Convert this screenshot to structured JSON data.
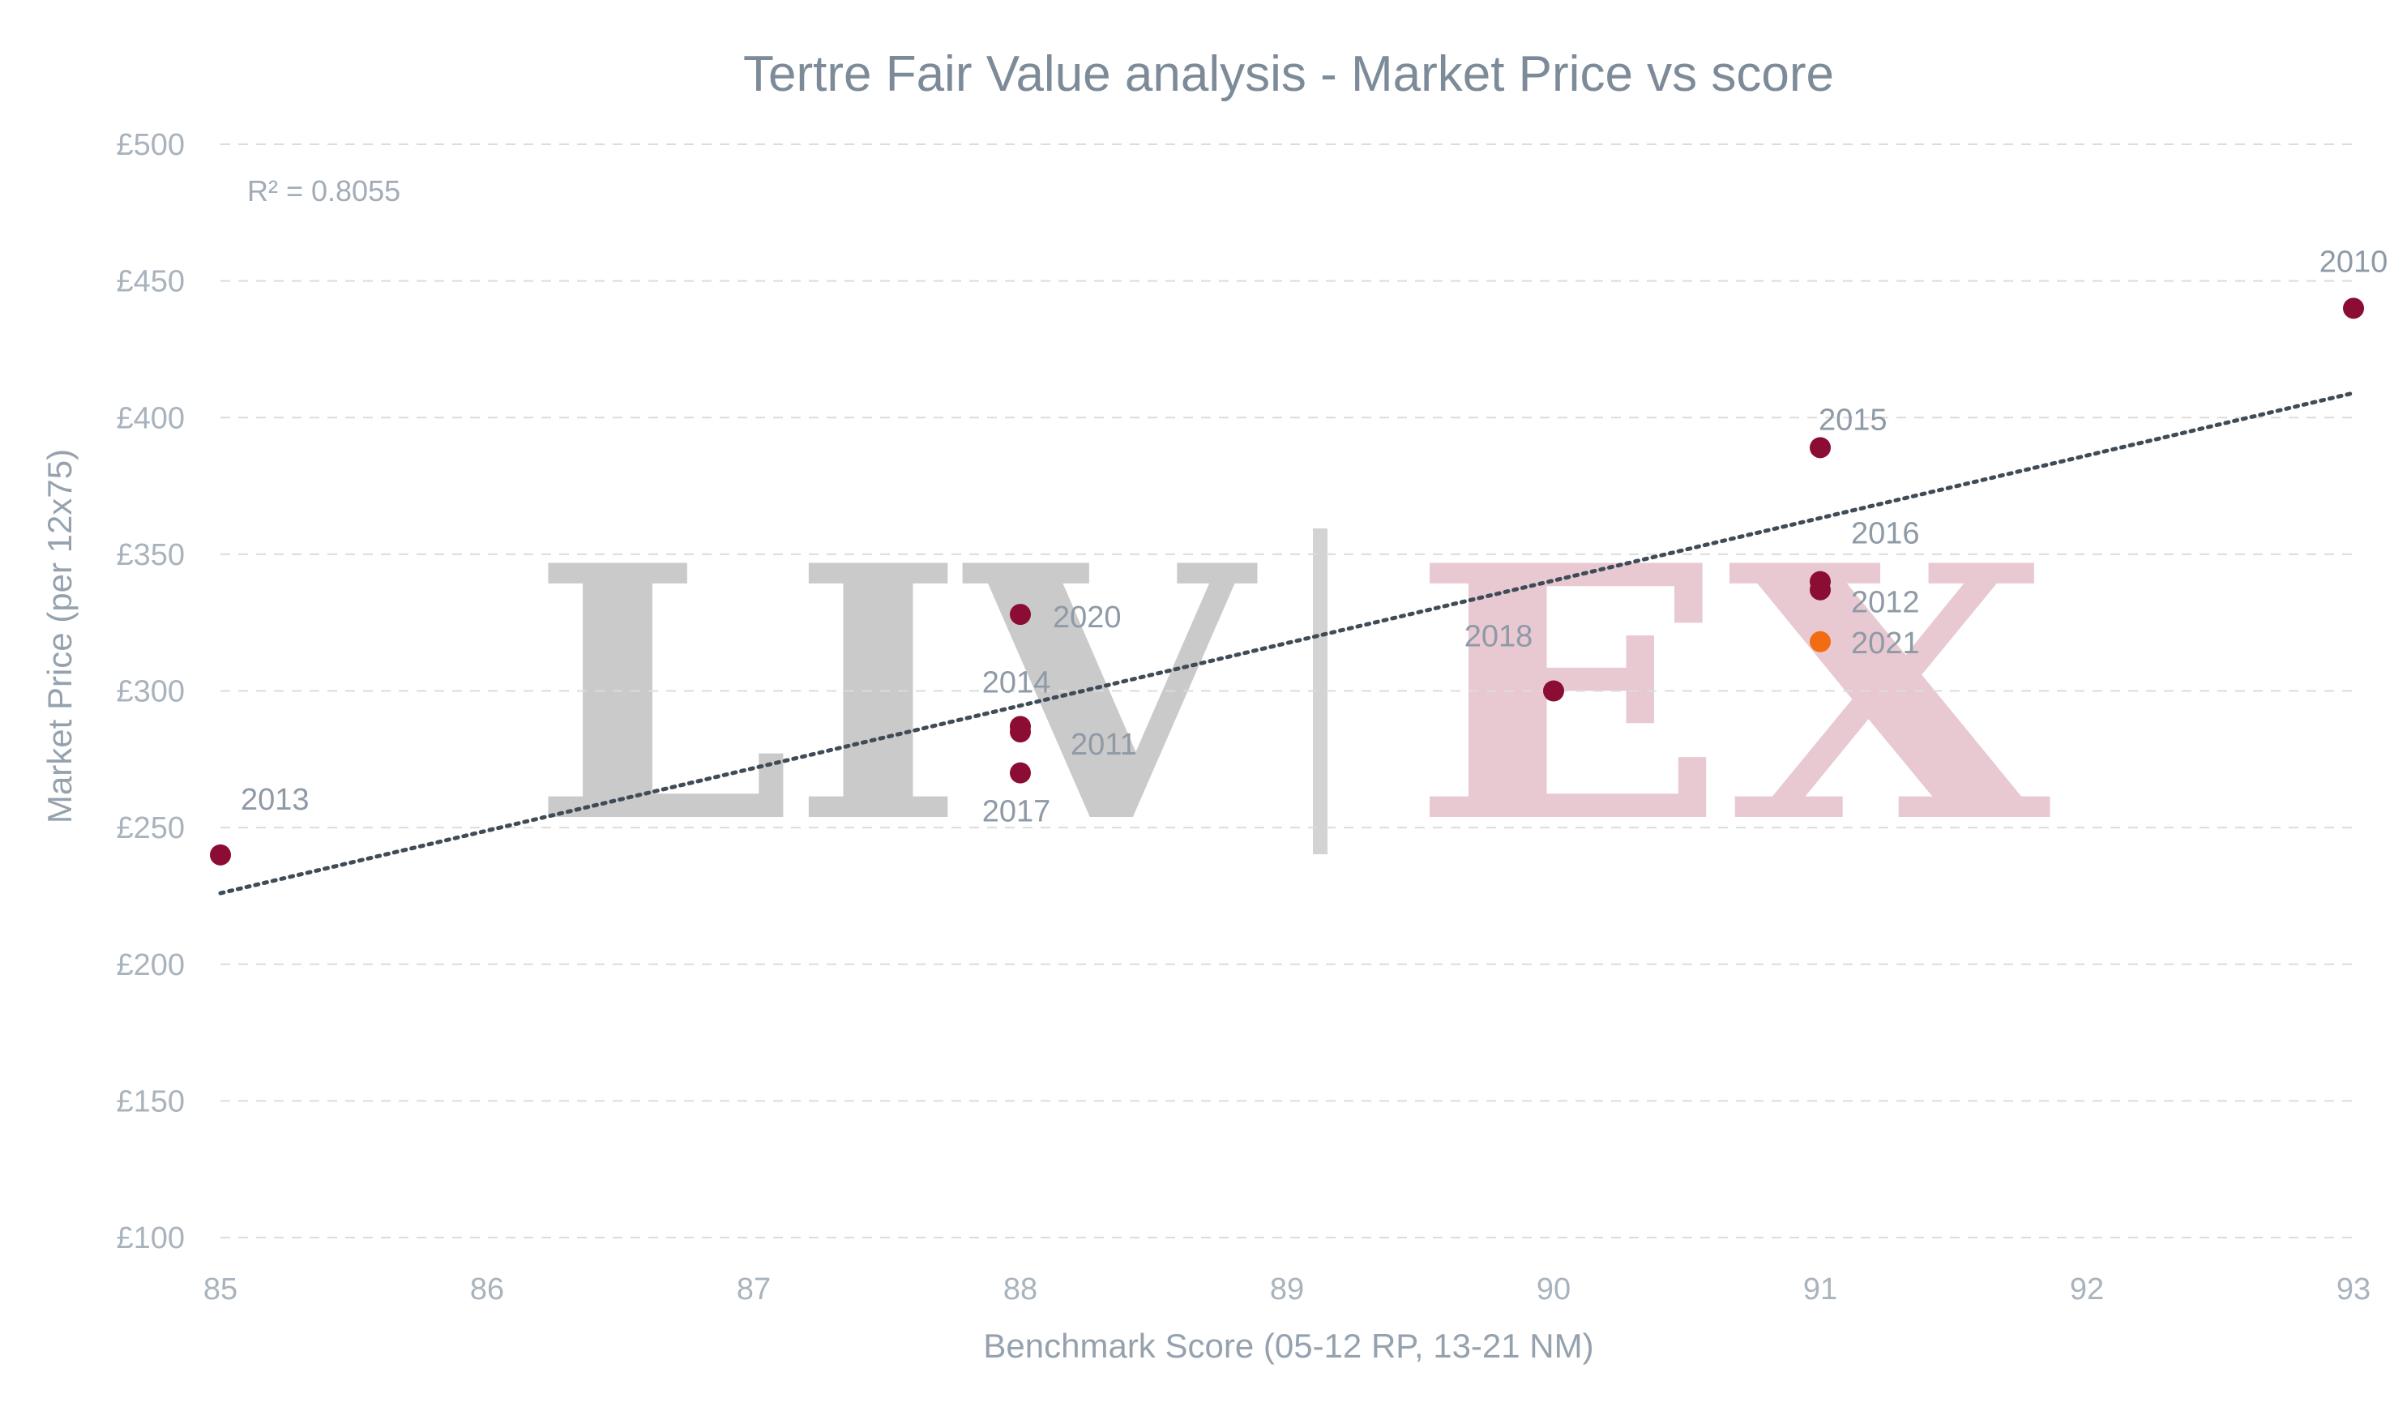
{
  "chart_data": {
    "type": "scatter",
    "title": "Tertre Fair Value analysis - Market Price vs score",
    "xlabel": "Benchmark Score (05-12 RP, 13-21 NM)",
    "ylabel": "Market Price (per 12x75)",
    "xlim": [
      85,
      93
    ],
    "ylim": [
      100,
      500
    ],
    "x_ticks": [
      "85",
      "86",
      "87",
      "88",
      "89",
      "90",
      "91",
      "92",
      "93"
    ],
    "y_ticks": [
      "£100",
      "£150",
      "£200",
      "£250",
      "£300",
      "£350",
      "£400",
      "£450",
      "£500"
    ],
    "grid": "horizontal dashed",
    "r_squared_label": "R² = 0.8055",
    "trendline": {
      "type": "linear",
      "x": [
        85,
        93
      ],
      "y": [
        226,
        409
      ]
    },
    "points": [
      {
        "label": "2010",
        "x": 93,
        "y": 440,
        "color": "#8b0d34"
      },
      {
        "label": "2011",
        "x": 88,
        "y": 285,
        "color": "#8b0d34"
      },
      {
        "label": "2012",
        "x": 91,
        "y": 337,
        "color": "#8b0d34"
      },
      {
        "label": "2013",
        "x": 85,
        "y": 240,
        "color": "#8b0d34"
      },
      {
        "label": "2014",
        "x": 88,
        "y": 287,
        "color": "#8b0d34"
      },
      {
        "label": "2015",
        "x": 91,
        "y": 389,
        "color": "#8b0d34"
      },
      {
        "label": "2016",
        "x": 91,
        "y": 340,
        "color": "#8b0d34"
      },
      {
        "label": "2017",
        "x": 88,
        "y": 270,
        "color": "#8b0d34"
      },
      {
        "label": "2018",
        "x": 90,
        "y": 300,
        "color": "#8b0d34"
      },
      {
        "label": "2020",
        "x": 88,
        "y": 328,
        "color": "#8b0d34"
      },
      {
        "label": "2021",
        "x": 91,
        "y": 318,
        "color": "#f26d12"
      }
    ]
  },
  "watermark": {
    "left": "LIV",
    "right": "EX"
  }
}
